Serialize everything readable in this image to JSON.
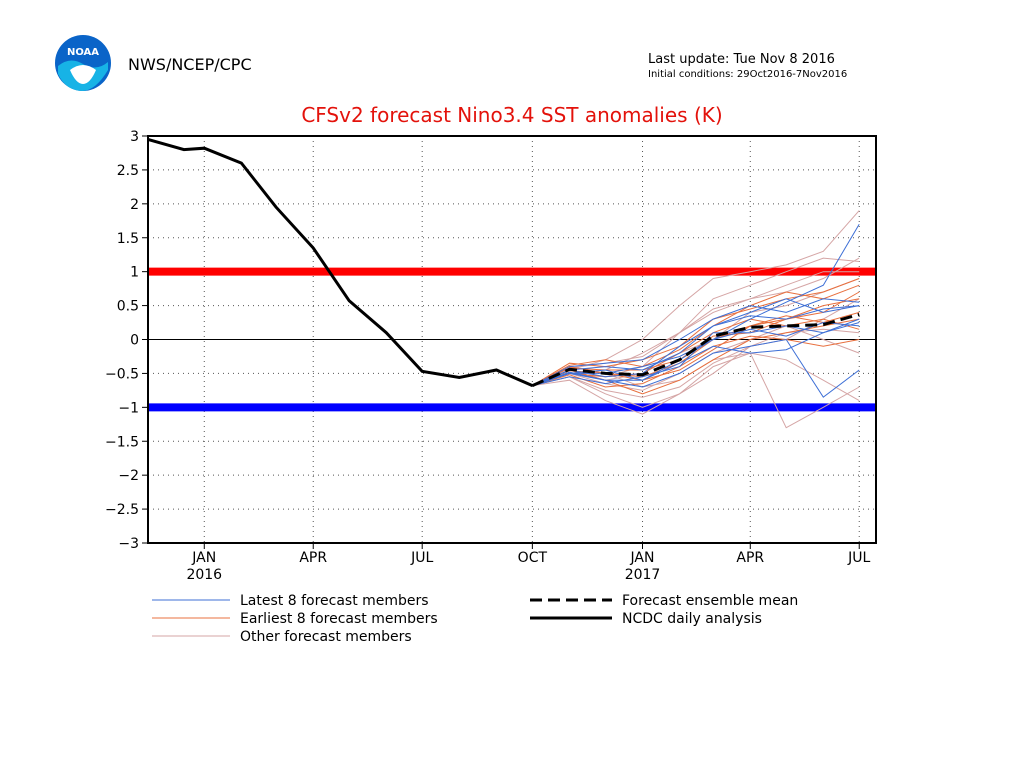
{
  "header": {
    "agency": "NWS/NCEP/CPC",
    "last_update": "Last update: Tue Nov  8 2016",
    "initial_conditions": "Initial conditions: 29Oct2016-7Nov2016",
    "logo_text": "NOAA"
  },
  "chart_data": {
    "type": "line",
    "title": "CFSv2 forecast Nino3.4 SST anomalies (K)",
    "xlabel": "",
    "ylabel": "",
    "x_axis": {
      "range_months": [
        "2015-11-15",
        "2017-07-15"
      ],
      "tick_labels": [
        {
          "date": "2016-01-01",
          "label": "JAN",
          "sublabel": "2016"
        },
        {
          "date": "2016-04-01",
          "label": "APR",
          "sublabel": ""
        },
        {
          "date": "2016-07-01",
          "label": "JUL",
          "sublabel": ""
        },
        {
          "date": "2016-10-01",
          "label": "OCT",
          "sublabel": ""
        },
        {
          "date": "2017-01-01",
          "label": "JAN",
          "sublabel": "2017"
        },
        {
          "date": "2017-04-01",
          "label": "APR",
          "sublabel": ""
        },
        {
          "date": "2017-07-01",
          "label": "JUL",
          "sublabel": ""
        }
      ]
    },
    "y_axis": {
      "ylim": [
        -3,
        3
      ],
      "ticks": [
        3,
        2.5,
        2,
        1.5,
        1,
        0.5,
        0,
        -0.5,
        -1,
        -1.5,
        -2,
        -2.5,
        -3
      ],
      "tick_labels": [
        "3",
        "2.5",
        "2",
        "1.5",
        "1",
        "0.5",
        "0",
        "−0.5",
        "−1",
        "−1.5",
        "−2",
        "−2.5",
        "−3"
      ]
    },
    "grid": true,
    "thresholds": [
      {
        "value": 1,
        "color": "#ff0000"
      },
      {
        "value": -1,
        "color": "#0000ff"
      },
      {
        "value": 0,
        "color": "#000000"
      }
    ],
    "series": [
      {
        "name": "NCDC daily analysis",
        "color": "#000000",
        "points": [
          [
            "2015-11-15",
            2.95
          ],
          [
            "2015-12-15",
            2.8
          ],
          [
            "2016-01-01",
            2.82
          ],
          [
            "2016-02-01",
            2.6
          ],
          [
            "2016-03-01",
            1.95
          ],
          [
            "2016-04-01",
            1.35
          ],
          [
            "2016-05-01",
            0.57
          ],
          [
            "2016-06-01",
            0.1
          ],
          [
            "2016-07-01",
            -0.47
          ],
          [
            "2016-08-01",
            -0.56
          ],
          [
            "2016-09-01",
            -0.45
          ],
          [
            "2016-10-01",
            -0.68
          ]
        ]
      },
      {
        "name": "Forecast ensemble mean",
        "color": "#000000",
        "points": [
          [
            "2016-10-01",
            -0.68
          ],
          [
            "2016-11-01",
            -0.44
          ],
          [
            "2016-12-01",
            -0.5
          ],
          [
            "2017-01-01",
            -0.52
          ],
          [
            "2017-02-01",
            -0.3
          ],
          [
            "2017-03-01",
            0.05
          ],
          [
            "2017-04-01",
            0.18
          ],
          [
            "2017-05-01",
            0.2
          ],
          [
            "2017-06-01",
            0.22
          ],
          [
            "2017-07-01",
            0.37
          ]
        ]
      }
    ],
    "member_months": [
      "2016-10-01",
      "2016-11-01",
      "2016-12-01",
      "2017-01-01",
      "2017-02-01",
      "2017-03-01",
      "2017-04-01",
      "2017-05-01",
      "2017-06-01",
      "2017-07-01"
    ],
    "member_groups": [
      {
        "name": "Latest 8 forecast members",
        "color": "#3d6fd6",
        "members": [
          [
            -0.68,
            -0.5,
            -0.45,
            -0.6,
            -0.3,
            0.0,
            0.3,
            0.55,
            0.8,
            1.7
          ],
          [
            -0.68,
            -0.45,
            -0.55,
            -0.5,
            -0.1,
            0.2,
            0.4,
            0.6,
            0.4,
            0.5
          ],
          [
            -0.68,
            -0.55,
            -0.65,
            -0.55,
            -0.4,
            0.1,
            0.1,
            0.2,
            0.1,
            0.3
          ],
          [
            -0.68,
            -0.4,
            -0.35,
            -0.3,
            0.0,
            0.3,
            0.5,
            0.4,
            0.6,
            0.55
          ],
          [
            -0.68,
            -0.5,
            -0.6,
            -0.7,
            -0.5,
            -0.2,
            -0.1,
            0.0,
            -0.85,
            -0.45
          ],
          [
            -0.68,
            -0.45,
            -0.4,
            -0.45,
            -0.2,
            0.2,
            0.35,
            0.3,
            0.45,
            0.5
          ],
          [
            -0.68,
            -0.5,
            -0.5,
            -0.4,
            -0.25,
            0.0,
            0.15,
            0.05,
            0.25,
            0.2
          ],
          [
            -0.68,
            -0.48,
            -0.6,
            -0.6,
            -0.35,
            -0.1,
            -0.2,
            -0.15,
            0.1,
            0.25
          ]
        ]
      },
      {
        "name": "Earliest 8 forecast members",
        "color": "#e8703f",
        "members": [
          [
            -0.68,
            -0.4,
            -0.5,
            -0.55,
            -0.35,
            0.0,
            0.2,
            0.3,
            0.5,
            0.6
          ],
          [
            -0.68,
            -0.35,
            -0.4,
            -0.3,
            -0.1,
            0.3,
            0.45,
            0.6,
            0.7,
            0.9
          ],
          [
            -0.68,
            -0.45,
            -0.6,
            -0.8,
            -0.6,
            -0.3,
            0.0,
            0.1,
            0.2,
            0.3
          ],
          [
            -0.68,
            -0.5,
            -0.55,
            -0.5,
            -0.2,
            0.1,
            0.3,
            0.2,
            0.3,
            0.15
          ],
          [
            -0.68,
            -0.42,
            -0.45,
            -0.45,
            -0.3,
            0.05,
            0.1,
            0.3,
            0.4,
            0.7
          ],
          [
            -0.68,
            -0.52,
            -0.7,
            -0.65,
            -0.4,
            -0.1,
            0.05,
            0.0,
            -0.1,
            0.0
          ],
          [
            -0.68,
            -0.38,
            -0.3,
            -0.4,
            -0.15,
            0.2,
            0.5,
            0.7,
            0.6,
            0.8
          ],
          [
            -0.68,
            -0.46,
            -0.5,
            -0.6,
            -0.45,
            -0.15,
            0.2,
            0.35,
            0.25,
            0.4
          ]
        ]
      },
      {
        "name": "Other forecast members",
        "color": "#d5a5a5",
        "members": [
          [
            -0.68,
            -0.45,
            -0.3,
            0.0,
            0.5,
            0.9,
            1.0,
            1.1,
            1.3,
            1.9
          ],
          [
            -0.68,
            -0.5,
            -0.55,
            -0.4,
            0.1,
            0.6,
            0.8,
            1.0,
            1.2,
            1.15
          ],
          [
            -0.68,
            -0.55,
            -0.8,
            -1.0,
            -0.8,
            -0.4,
            -0.2,
            -1.3,
            -1.0,
            -0.7
          ],
          [
            -0.68,
            -0.4,
            -0.5,
            -0.7,
            -0.6,
            -0.3,
            -0.2,
            -0.3,
            -0.6,
            -0.9
          ],
          [
            -0.68,
            -0.5,
            -0.45,
            -0.2,
            0.1,
            0.4,
            0.6,
            0.8,
            1.0,
            1.0
          ],
          [
            -0.68,
            -0.6,
            -0.9,
            -1.1,
            -0.8,
            -0.5,
            -0.1,
            0.0,
            0.3,
            0.6
          ],
          [
            -0.68,
            -0.45,
            -0.6,
            -0.5,
            -0.2,
            0.0,
            0.4,
            0.5,
            0.7,
            0.9
          ],
          [
            -0.68,
            -0.5,
            -0.65,
            -0.75,
            -0.5,
            -0.2,
            0.0,
            0.2,
            0.0,
            -0.2
          ],
          [
            -0.68,
            -0.42,
            -0.35,
            -0.25,
            0.1,
            0.45,
            0.6,
            0.7,
            0.9,
            1.2
          ],
          [
            -0.68,
            -0.55,
            -0.75,
            -0.85,
            -0.7,
            -0.35,
            -0.1,
            0.1,
            0.15,
            0.1
          ]
        ]
      }
    ],
    "legend": [
      {
        "label": "Latest 8 forecast members",
        "color": "#3d6fd6",
        "style": "thin"
      },
      {
        "label": "Earliest 8 forecast members",
        "color": "#e8703f",
        "style": "thin"
      },
      {
        "label": "Other forecast members",
        "color": "#d5a5a5",
        "style": "thin"
      },
      {
        "label": "Forecast ensemble mean",
        "color": "#000000",
        "style": "dashed"
      },
      {
        "label": "NCDC daily analysis",
        "color": "#000000",
        "style": "solid"
      }
    ]
  }
}
